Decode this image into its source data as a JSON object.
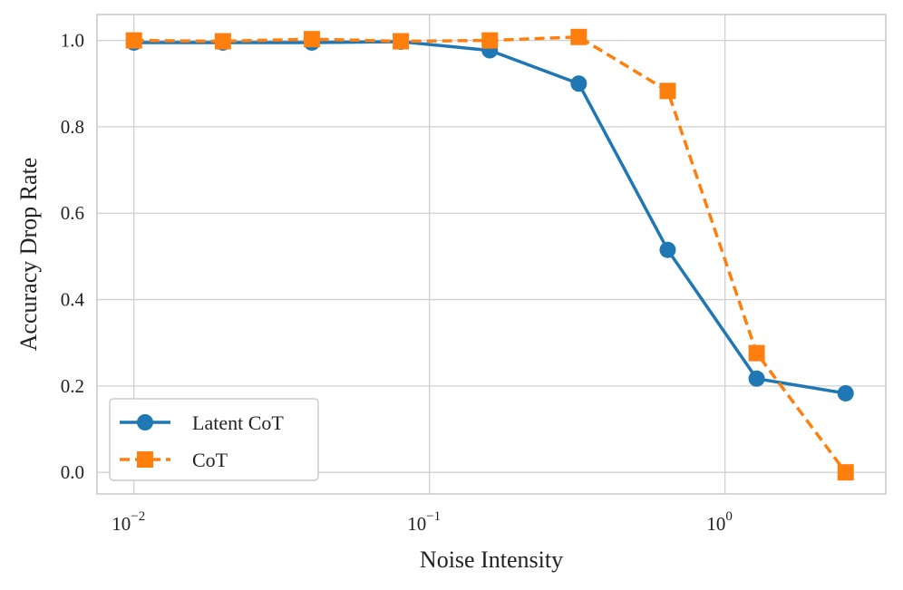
{
  "chart_data": {
    "type": "line",
    "title": "",
    "xlabel": "Noise Intensity",
    "ylabel": "Accuracy Drop Rate",
    "xscale": "log",
    "xlim": [
      0.0075,
      3.5
    ],
    "ylim": [
      -0.05,
      1.06
    ],
    "grid": true,
    "legend_position": "lower-left",
    "x_ticks": [
      {
        "value": 0.01,
        "base": "10",
        "exp": "−2"
      },
      {
        "value": 0.1,
        "base": "10",
        "exp": "−1"
      },
      {
        "value": 1,
        "base": "10",
        "exp": "0"
      }
    ],
    "y_ticks": [
      {
        "value": 0.0,
        "label": "0.0"
      },
      {
        "value": 0.2,
        "label": "0.2"
      },
      {
        "value": 0.4,
        "label": "0.4"
      },
      {
        "value": 0.6,
        "label": "0.6"
      },
      {
        "value": 0.8,
        "label": "0.8"
      },
      {
        "value": 1.0,
        "label": "1.0"
      }
    ],
    "x": [
      0.01,
      0.02,
      0.04,
      0.08,
      0.16,
      0.32,
      0.64,
      1.28,
      2.56
    ],
    "series": [
      {
        "name": "Latent CoT",
        "color": "#1f77b4",
        "marker": "circle",
        "linestyle": "solid",
        "values": [
          0.995,
          0.995,
          0.995,
          0.997,
          0.977,
          0.9,
          0.515,
          0.217,
          0.183
        ]
      },
      {
        "name": "CoT",
        "color": "#ff7f0e",
        "marker": "square",
        "linestyle": "dashed",
        "values": [
          1.0,
          0.998,
          1.003,
          0.998,
          1.0,
          1.008,
          0.883,
          0.276,
          0.0
        ]
      }
    ]
  }
}
